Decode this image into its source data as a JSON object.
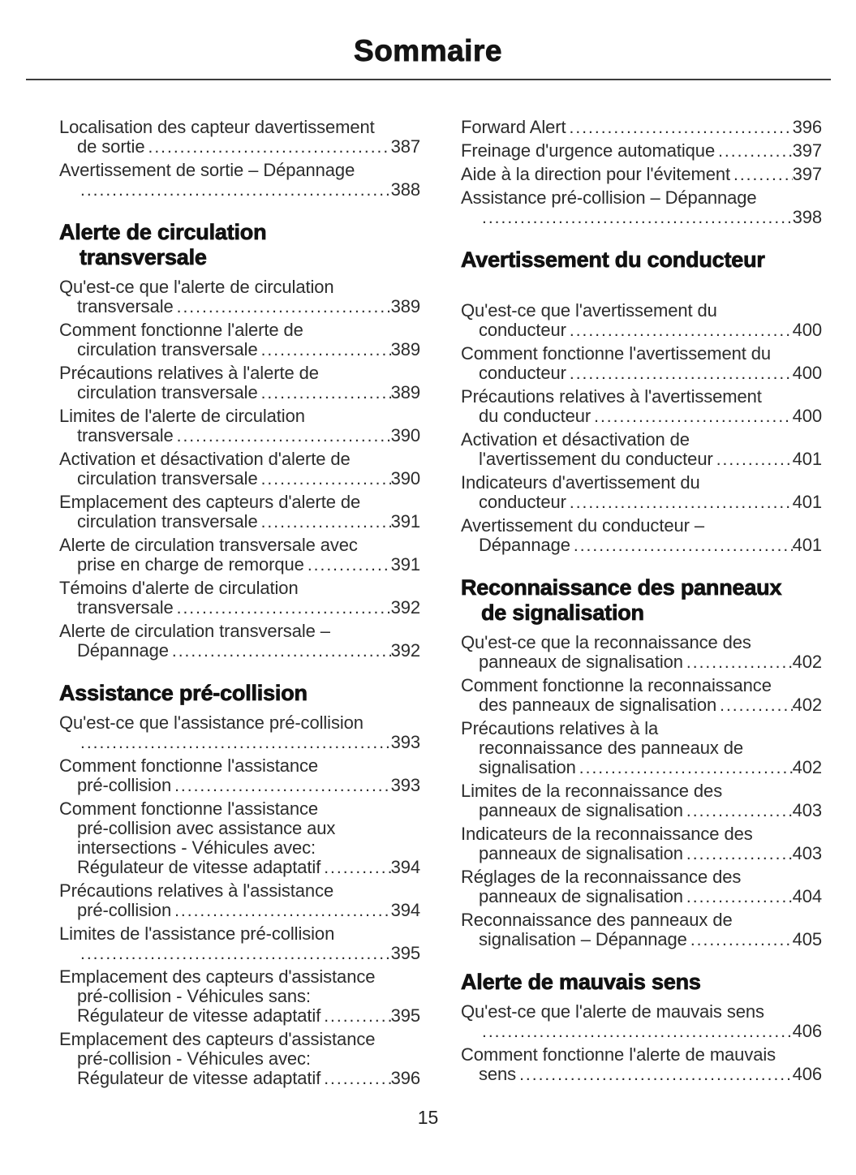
{
  "page": {
    "title": "Sommaire",
    "footer_page_number": "15"
  },
  "columns": [
    {
      "sections": [
        {
          "heading_lines": [],
          "entries": [
            {
              "lines": [
                "Localisation des capteur davertissement",
                "de sortie"
              ],
              "page": "387"
            },
            {
              "lines": [
                "Avertissement de sortie – Dépannage",
                ""
              ],
              "page": "388"
            }
          ]
        },
        {
          "heading_lines": [
            "Alerte de circulation",
            "transversale"
          ],
          "entries": [
            {
              "lines": [
                "Qu'est-ce que l'alerte de circulation",
                "transversale"
              ],
              "page": "389"
            },
            {
              "lines": [
                "Comment fonctionne l'alerte de",
                "circulation transversale"
              ],
              "page": "389"
            },
            {
              "lines": [
                "Précautions relatives à l'alerte de",
                "circulation transversale"
              ],
              "page": "389"
            },
            {
              "lines": [
                "Limites de l'alerte de circulation",
                "transversale"
              ],
              "page": "390"
            },
            {
              "lines": [
                "Activation et désactivation d'alerte de",
                "circulation transversale"
              ],
              "page": "390"
            },
            {
              "lines": [
                "Emplacement des capteurs d'alerte de",
                "circulation transversale"
              ],
              "page": "391"
            },
            {
              "lines": [
                "Alerte de circulation transversale avec",
                "prise en charge de remorque"
              ],
              "page": "391"
            },
            {
              "lines": [
                "Témoins d'alerte de circulation",
                "transversale"
              ],
              "page": "392"
            },
            {
              "lines": [
                "Alerte de circulation transversale –",
                "Dépannage"
              ],
              "page": "392"
            }
          ]
        },
        {
          "heading_lines": [
            "Assistance pré-collision"
          ],
          "entries": [
            {
              "lines": [
                "Qu'est-ce que l'assistance pré-collision",
                ""
              ],
              "page": "393"
            },
            {
              "lines": [
                "Comment fonctionne l'assistance",
                "pré-collision"
              ],
              "page": "393"
            },
            {
              "lines": [
                "Comment fonctionne l'assistance",
                "pré-collision avec assistance aux",
                "intersections - Véhicules avec:",
                "Régulateur de vitesse adaptatif"
              ],
              "page": "394"
            },
            {
              "lines": [
                "Précautions relatives à l'assistance",
                "pré-collision"
              ],
              "page": "394"
            },
            {
              "lines": [
                "Limites de l'assistance pré-collision",
                ""
              ],
              "page": "395"
            },
            {
              "lines": [
                "Emplacement des capteurs d'assistance",
                "pré-collision - Véhicules sans:",
                "Régulateur de vitesse adaptatif"
              ],
              "page": "395"
            },
            {
              "lines": [
                "Emplacement des capteurs d'assistance",
                "pré-collision - Véhicules avec:",
                "Régulateur de vitesse adaptatif"
              ],
              "page": "396"
            }
          ]
        }
      ]
    },
    {
      "sections": [
        {
          "heading_lines": [],
          "entries": [
            {
              "lines": [
                "Forward Alert"
              ],
              "page": "396"
            },
            {
              "lines": [
                "Freinage d'urgence automatique"
              ],
              "page": "397"
            },
            {
              "lines": [
                "Aide à la direction pour l'évitement"
              ],
              "page": "397"
            },
            {
              "lines": [
                "Assistance pré-collision – Dépannage",
                ""
              ],
              "page": "398"
            }
          ]
        },
        {
          "heading_lines": [
            "Avertissement du conducteur"
          ],
          "extra_gap_after_heading": true,
          "entries": [
            {
              "lines": [
                "Qu'est-ce que l'avertissement du",
                "conducteur"
              ],
              "page": "400"
            },
            {
              "lines": [
                "Comment fonctionne l'avertissement du",
                "conducteur"
              ],
              "page": "400"
            },
            {
              "lines": [
                "Précautions relatives à l'avertissement",
                "du conducteur"
              ],
              "page": "400"
            },
            {
              "lines": [
                "Activation et désactivation de",
                "l'avertissement du conducteur"
              ],
              "page": "401"
            },
            {
              "lines": [
                "Indicateurs d'avertissement du",
                "conducteur"
              ],
              "page": "401"
            },
            {
              "lines": [
                "Avertissement du conducteur –",
                "Dépannage"
              ],
              "page": "401"
            }
          ]
        },
        {
          "heading_lines": [
            "Reconnaissance des panneaux",
            "de signalisation"
          ],
          "entries": [
            {
              "lines": [
                "Qu'est-ce que la reconnaissance des",
                "panneaux de signalisation"
              ],
              "page": "402"
            },
            {
              "lines": [
                "Comment fonctionne la reconnaissance",
                "des panneaux de signalisation"
              ],
              "page": "402"
            },
            {
              "lines": [
                "Précautions relatives à la",
                "reconnaissance des panneaux de",
                "signalisation"
              ],
              "page": "402"
            },
            {
              "lines": [
                "Limites de la reconnaissance des",
                "panneaux de signalisation"
              ],
              "page": "403"
            },
            {
              "lines": [
                "Indicateurs de la reconnaissance des",
                "panneaux de signalisation"
              ],
              "page": "403"
            },
            {
              "lines": [
                "Réglages de la reconnaissance des",
                "panneaux de signalisation"
              ],
              "page": "404"
            },
            {
              "lines": [
                "Reconnaissance des panneaux de",
                "signalisation – Dépannage"
              ],
              "page": "405"
            }
          ]
        },
        {
          "heading_lines": [
            "Alerte de mauvais sens"
          ],
          "entries": [
            {
              "lines": [
                "Qu'est-ce que l'alerte de mauvais sens",
                ""
              ],
              "page": "406"
            },
            {
              "lines": [
                "Comment fonctionne l'alerte de mauvais",
                "sens"
              ],
              "page": "406"
            }
          ]
        }
      ]
    }
  ]
}
